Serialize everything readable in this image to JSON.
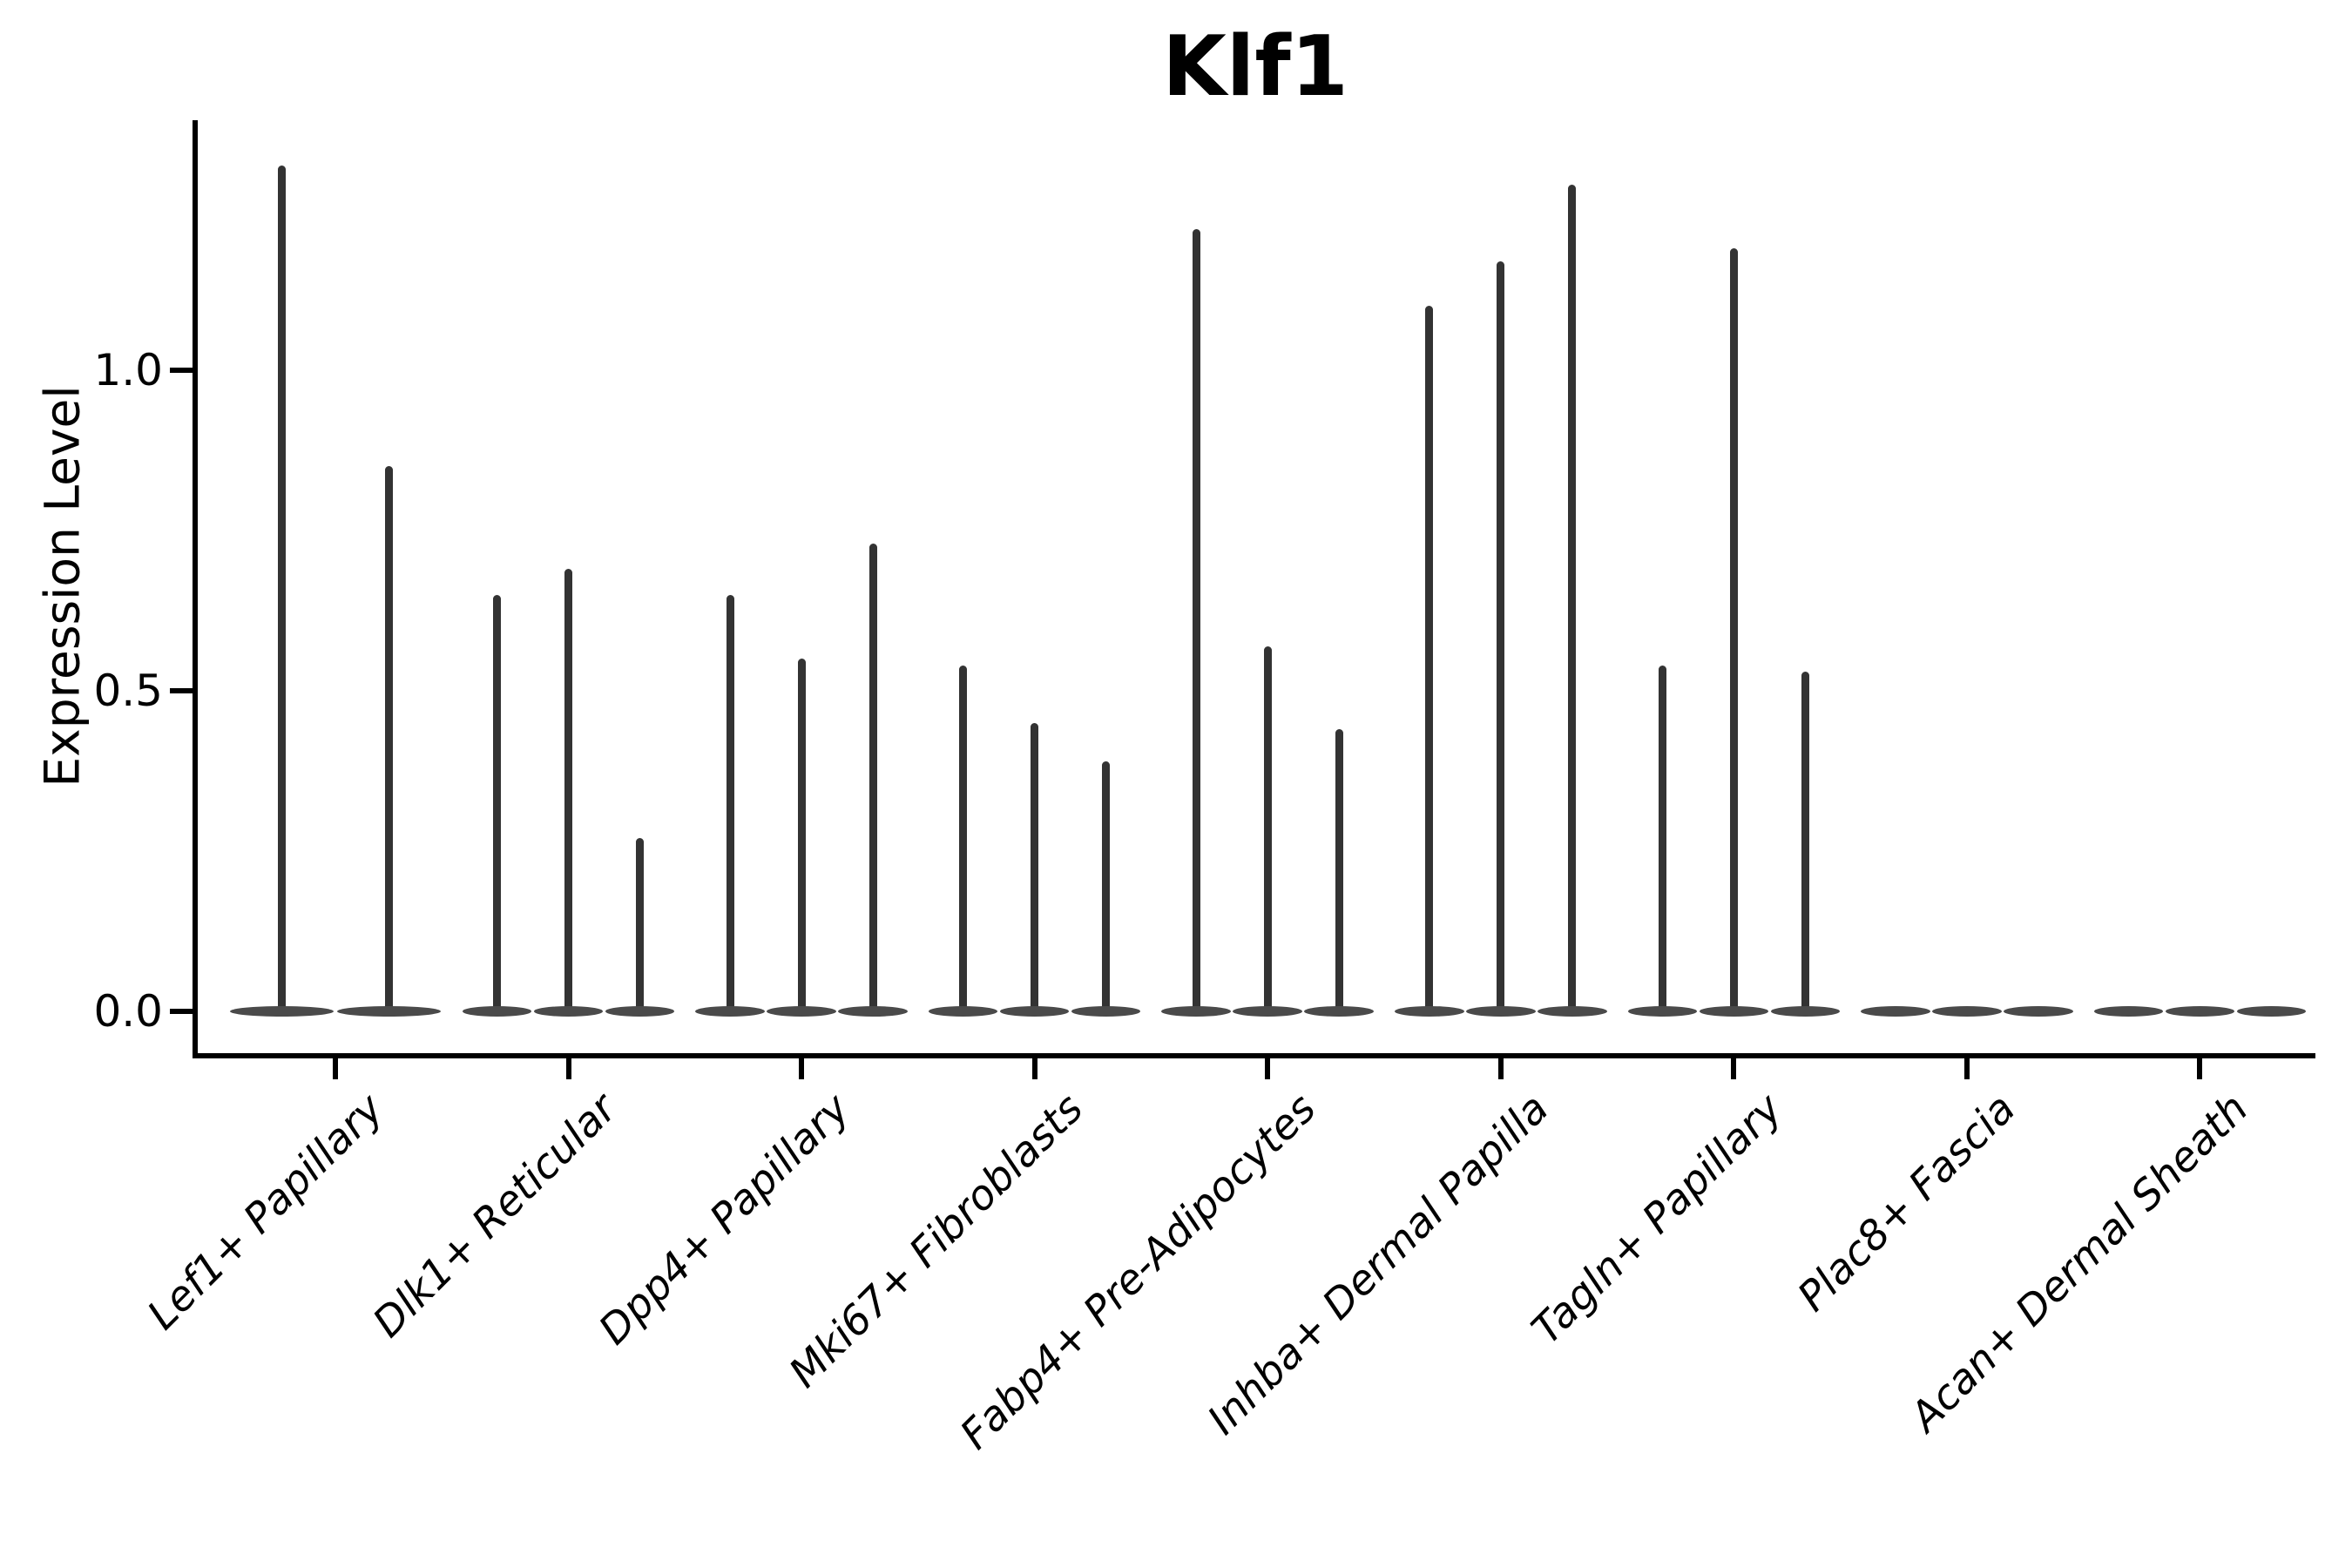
{
  "title": "Klf1",
  "ylabel": "Expression Level",
  "colors": {
    "background": "#ffffff",
    "axis": "#000000",
    "text": "#000000",
    "violin_spike": "#333333",
    "violin_base": "#4a4a4a"
  },
  "chart_data": {
    "type": "violin",
    "title": "Klf1",
    "xlabel": "",
    "ylabel": "Expression Level",
    "ytick_labels": [
      "0.0",
      "0.5",
      "1.0"
    ],
    "yticks": [
      0.0,
      0.5,
      1.0
    ],
    "ylim": [
      -0.065,
      1.39
    ],
    "grid": false,
    "legend": "none",
    "categories": [
      "Lef1+ Papillary",
      "Dlk1+ Reticular",
      "Dpp4+ Papillary",
      "Mki67+ Fibroblasts",
      "Fabp4+ Pre-Adipocytes",
      "Inhba+ Dermal Papilla",
      "Tagln+ Papillary",
      "Plac8+ Fascia",
      "Acan+ Dermal Sheath"
    ],
    "series": [
      {
        "category": "Lef1+ Papillary",
        "violin_max_values": [
          1.32,
          0.85
        ]
      },
      {
        "category": "Dlk1+ Reticular",
        "violin_max_values": [
          0.65,
          0.69,
          0.27
        ]
      },
      {
        "category": "Dpp4+ Papillary",
        "violin_max_values": [
          0.65,
          0.55,
          0.73
        ]
      },
      {
        "category": "Mki67+ Fibroblasts",
        "violin_max_values": [
          0.54,
          0.45,
          0.39
        ]
      },
      {
        "category": "Fabp4+ Pre-Adipocytes",
        "violin_max_values": [
          1.22,
          0.57,
          0.44
        ]
      },
      {
        "category": "Inhba+ Dermal Papilla",
        "violin_max_values": [
          1.1,
          1.17,
          1.29
        ]
      },
      {
        "category": "Tagln+ Papillary",
        "violin_max_values": [
          0.54,
          1.19,
          0.53
        ]
      },
      {
        "category": "Plac8+ Fascia",
        "violin_max_values": [
          0.0,
          0.0,
          0.0
        ]
      },
      {
        "category": "Acan+ Dermal Sheath",
        "violin_max_values": [
          0.0,
          0.0,
          0.0
        ]
      }
    ]
  }
}
